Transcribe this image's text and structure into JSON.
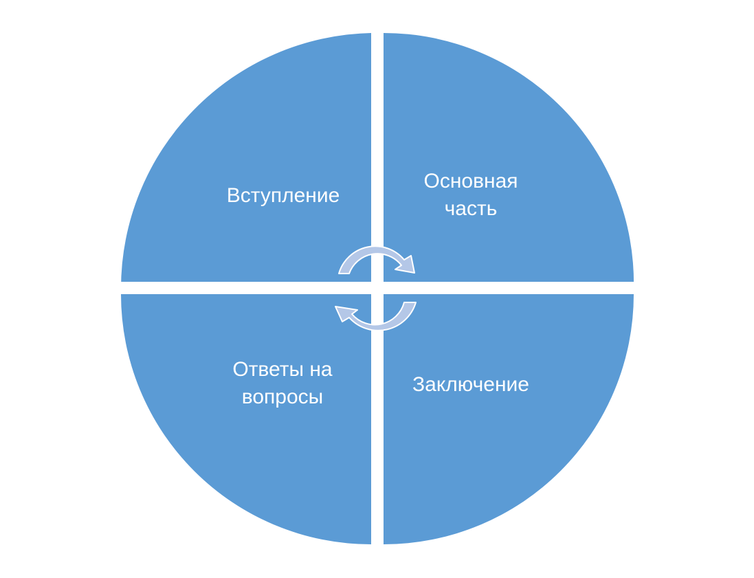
{
  "diagram": {
    "type": "cycle-matrix",
    "fill_color": "#5b9bd5",
    "gap_color": "#ffffff",
    "arrow_color": "#b4c7e7",
    "arrow_outline": "#ffffff",
    "text_color": "#ffffff",
    "arrow_icons": [
      "clockwise-arrow-icon",
      "counterclockwise-arrow-icon"
    ],
    "quadrants": [
      {
        "position": "top-left",
        "lines": [
          "Вступление"
        ]
      },
      {
        "position": "top-right",
        "lines": [
          "Основная",
          "часть"
        ]
      },
      {
        "position": "bottom-left",
        "lines": [
          "Ответы на",
          "вопросы"
        ]
      },
      {
        "position": "bottom-right",
        "lines": [
          "Заключение"
        ]
      }
    ]
  }
}
